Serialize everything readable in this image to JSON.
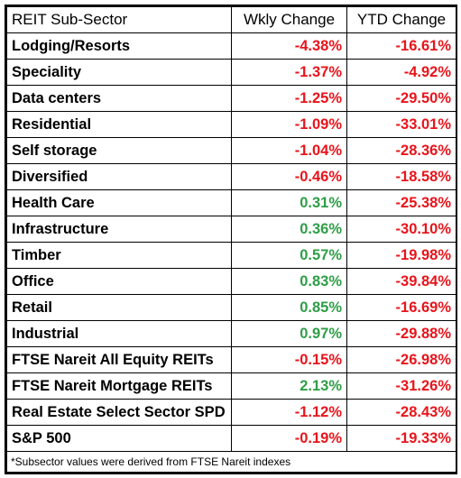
{
  "header": {
    "name": "REIT Sub-Sector",
    "weekly": "Wkly Change",
    "ytd": "YTD Change"
  },
  "rows": [
    {
      "name": "Lodging/Resorts",
      "weekly": "-4.38%",
      "ytd": "-16.61%"
    },
    {
      "name": "Speciality",
      "weekly": "-1.37%",
      "ytd": "-4.92%"
    },
    {
      "name": "Data centers",
      "weekly": "-1.25%",
      "ytd": "-29.50%"
    },
    {
      "name": "Residential",
      "weekly": "-1.09%",
      "ytd": "-33.01%"
    },
    {
      "name": "Self storage",
      "weekly": "-1.04%",
      "ytd": "-28.36%"
    },
    {
      "name": "Diversified",
      "weekly": "-0.46%",
      "ytd": "-18.58%"
    },
    {
      "name": "Health Care",
      "weekly": "0.31%",
      "ytd": "-25.38%"
    },
    {
      "name": "Infrastructure",
      "weekly": "0.36%",
      "ytd": "-30.10%"
    },
    {
      "name": "Timber",
      "weekly": "0.57%",
      "ytd": "-19.98%"
    },
    {
      "name": "Office",
      "weekly": "0.83%",
      "ytd": "-39.84%"
    },
    {
      "name": "Retail",
      "weekly": "0.85%",
      "ytd": "-16.69%"
    },
    {
      "name": "Industrial",
      "weekly": "0.97%",
      "ytd": "-29.88%"
    },
    {
      "name": "FTSE Nareit All Equity REITs",
      "weekly": "-0.15%",
      "ytd": "-26.98%"
    },
    {
      "name": "FTSE Nareit Mortgage REITs",
      "weekly": "2.13%",
      "ytd": "-31.26%"
    },
    {
      "name": "Real Estate Select Sector SPD",
      "weekly": "-1.12%",
      "ytd": "-28.43%"
    },
    {
      "name": "S&P 500",
      "weekly": "-0.19%",
      "ytd": "-19.33%"
    }
  ],
  "footnote": "*Subsector values were derived from FTSE Nareit indexes",
  "colors": {
    "negative": "#e8141b",
    "positive": "#2e9e47"
  }
}
